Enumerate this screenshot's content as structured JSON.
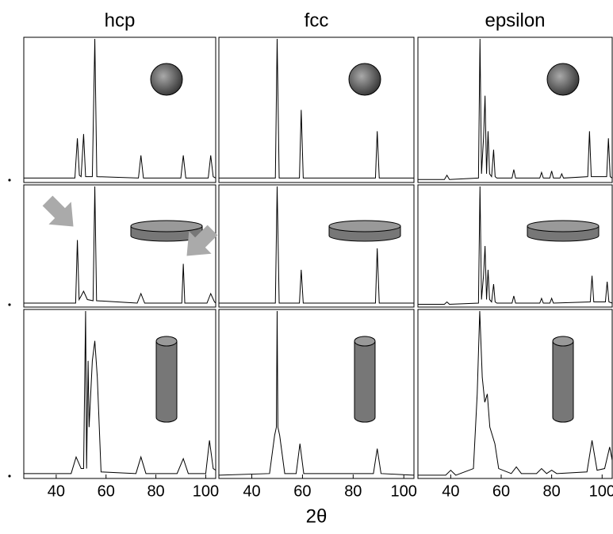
{
  "chart_data": [
    {
      "type": "line",
      "title": "hcp",
      "color": "#000000",
      "xlim": [
        27,
        104
      ],
      "ylim": [
        0,
        1
      ],
      "x": [
        27,
        47.5,
        48.5,
        49.3,
        50,
        51,
        51.8,
        54.5,
        55.5,
        56.3,
        73,
        74,
        75,
        90,
        91,
        92,
        101,
        102,
        103,
        104
      ],
      "values": [
        0.02,
        0.02,
        0.3,
        0.04,
        0.03,
        0.33,
        0.03,
        0.03,
        1,
        0.03,
        0.02,
        0.18,
        0.02,
        0.02,
        0.18,
        0.02,
        0.02,
        0.18,
        0.03,
        0.02
      ]
    },
    {
      "type": "line",
      "title": "fcc",
      "color": "#000000",
      "xlim": [
        27,
        104
      ],
      "ylim": [
        0,
        1
      ],
      "x": [
        27,
        49.3,
        50,
        50.8,
        58.8,
        59.5,
        60.3,
        88.8,
        89.5,
        90.3,
        104
      ],
      "values": [
        0.02,
        0.02,
        1,
        0.02,
        0.02,
        0.5,
        0.02,
        0.02,
        0.35,
        0.02,
        0.02
      ]
    },
    {
      "type": "line",
      "title": "epsilon",
      "color": "#000000",
      "xlim": [
        27,
        104
      ],
      "ylim": [
        0,
        1
      ],
      "x": [
        27,
        37.5,
        38.5,
        39.5,
        51,
        51.6,
        52.2,
        53,
        53.6,
        54.2,
        54.8,
        55.4,
        56.2,
        57,
        57.6,
        58.3,
        64.3,
        65,
        65.7,
        75.3,
        76,
        76.7,
        79.3,
        80,
        80.7,
        83.3,
        84,
        84.7,
        94.3,
        95,
        95.7,
        101.8,
        102.5,
        103.2,
        104
      ],
      "values": [
        0.01,
        0.01,
        0.04,
        0.01,
        0.02,
        1,
        0.05,
        0.3,
        0.6,
        0.05,
        0.35,
        0.05,
        0.03,
        0.22,
        0.03,
        0.02,
        0.02,
        0.08,
        0.02,
        0.02,
        0.06,
        0.02,
        0.02,
        0.07,
        0.02,
        0.02,
        0.05,
        0.02,
        0.03,
        0.35,
        0.03,
        0.03,
        0.3,
        0.03,
        0.02
      ]
    },
    {
      "type": "line",
      "color": "#000000",
      "xlim": [
        27,
        104
      ],
      "ylim": [
        0,
        1
      ],
      "x": [
        27,
        47.8,
        48.5,
        49.2,
        50,
        51,
        52.5,
        54.8,
        55.5,
        56.2,
        72.5,
        74,
        75.5,
        90.4,
        91,
        91.6,
        100.5,
        102,
        103.5,
        104
      ],
      "values": [
        0.02,
        0.02,
        0.55,
        0.05,
        0.08,
        0.12,
        0.05,
        0.04,
        1,
        0.04,
        0.02,
        0.1,
        0.02,
        0.02,
        0.35,
        0.02,
        0.02,
        0.1,
        0.03,
        0.02
      ]
    },
    {
      "type": "line",
      "color": "#000000",
      "xlim": [
        27,
        104
      ],
      "ylim": [
        0,
        1
      ],
      "x": [
        27,
        49.3,
        50,
        50.8,
        58.8,
        59.5,
        60.3,
        88.8,
        89.5,
        90.3,
        104
      ],
      "values": [
        0.02,
        0.02,
        1,
        0.02,
        0.02,
        0.3,
        0.02,
        0.02,
        0.48,
        0.02,
        0.02
      ]
    },
    {
      "type": "line",
      "color": "#000000",
      "xlim": [
        27,
        104
      ],
      "ylim": [
        0,
        1
      ],
      "x": [
        27,
        37.5,
        38.5,
        39.5,
        51,
        51.6,
        52.2,
        53,
        53.6,
        54.2,
        54.8,
        55.4,
        56.2,
        57,
        57.6,
        58.3,
        64.3,
        65,
        65.7,
        75.3,
        76,
        76.7,
        79.3,
        80,
        80.7,
        95.3,
        96,
        96.7,
        101.3,
        102,
        102.7,
        104
      ],
      "values": [
        0.01,
        0.01,
        0.03,
        0.01,
        0.02,
        1,
        0.05,
        0.25,
        0.5,
        0.05,
        0.3,
        0.05,
        0.03,
        0.18,
        0.03,
        0.02,
        0.02,
        0.08,
        0.02,
        0.02,
        0.06,
        0.02,
        0.02,
        0.06,
        0.02,
        0.03,
        0.25,
        0.03,
        0.03,
        0.2,
        0.03,
        0.02
      ]
    },
    {
      "type": "line",
      "color": "#000000",
      "xlim": [
        27,
        104
      ],
      "ylim": [
        0,
        1
      ],
      "xticks": [
        40,
        60,
        80,
        100
      ],
      "x": [
        27,
        46,
        48,
        50,
        51,
        51.8,
        52.2,
        52.8,
        53.2,
        54.5,
        55.5,
        56.5,
        58,
        72,
        74,
        76,
        88.5,
        91,
        93,
        100,
        101.5,
        103,
        104
      ],
      "values": [
        0.02,
        0.02,
        0.12,
        0.05,
        0.05,
        1,
        0.05,
        0.7,
        0.3,
        0.7,
        0.82,
        0.6,
        0.03,
        0.02,
        0.12,
        0.02,
        0.02,
        0.11,
        0.02,
        0.02,
        0.22,
        0.05,
        0.04
      ]
    },
    {
      "type": "line",
      "color": "#000000",
      "xlim": [
        27,
        104
      ],
      "ylim": [
        0,
        1
      ],
      "xticks": [
        40,
        60,
        80,
        100
      ],
      "xlabel": "2θ",
      "x": [
        27,
        47,
        49,
        49.7,
        50,
        50.3,
        51,
        53,
        57.5,
        59,
        60.5,
        88,
        89.5,
        91,
        104
      ],
      "values": [
        0.01,
        0.02,
        0.25,
        0.3,
        1,
        0.3,
        0.25,
        0.02,
        0.02,
        0.2,
        0.02,
        0.02,
        0.17,
        0.02,
        0.01
      ]
    },
    {
      "type": "line",
      "color": "#000000",
      "xlim": [
        27,
        104
      ],
      "ylim": [
        0,
        1
      ],
      "xticks": [
        40,
        60,
        80,
        100
      ],
      "x": [
        27,
        38,
        40,
        42,
        49,
        50.5,
        51.5,
        52.5,
        53.5,
        54.5,
        55.5,
        57.5,
        59,
        64,
        66,
        68,
        74,
        76,
        78,
        80,
        82,
        94,
        96,
        98,
        101,
        103,
        104
      ],
      "values": [
        0.01,
        0.01,
        0.04,
        0.01,
        0.05,
        0.5,
        1,
        0.6,
        0.45,
        0.5,
        0.3,
        0.2,
        0.05,
        0.02,
        0.06,
        0.02,
        0.02,
        0.05,
        0.02,
        0.04,
        0.02,
        0.03,
        0.22,
        0.04,
        0.05,
        0.18,
        0.1
      ]
    }
  ]
}
